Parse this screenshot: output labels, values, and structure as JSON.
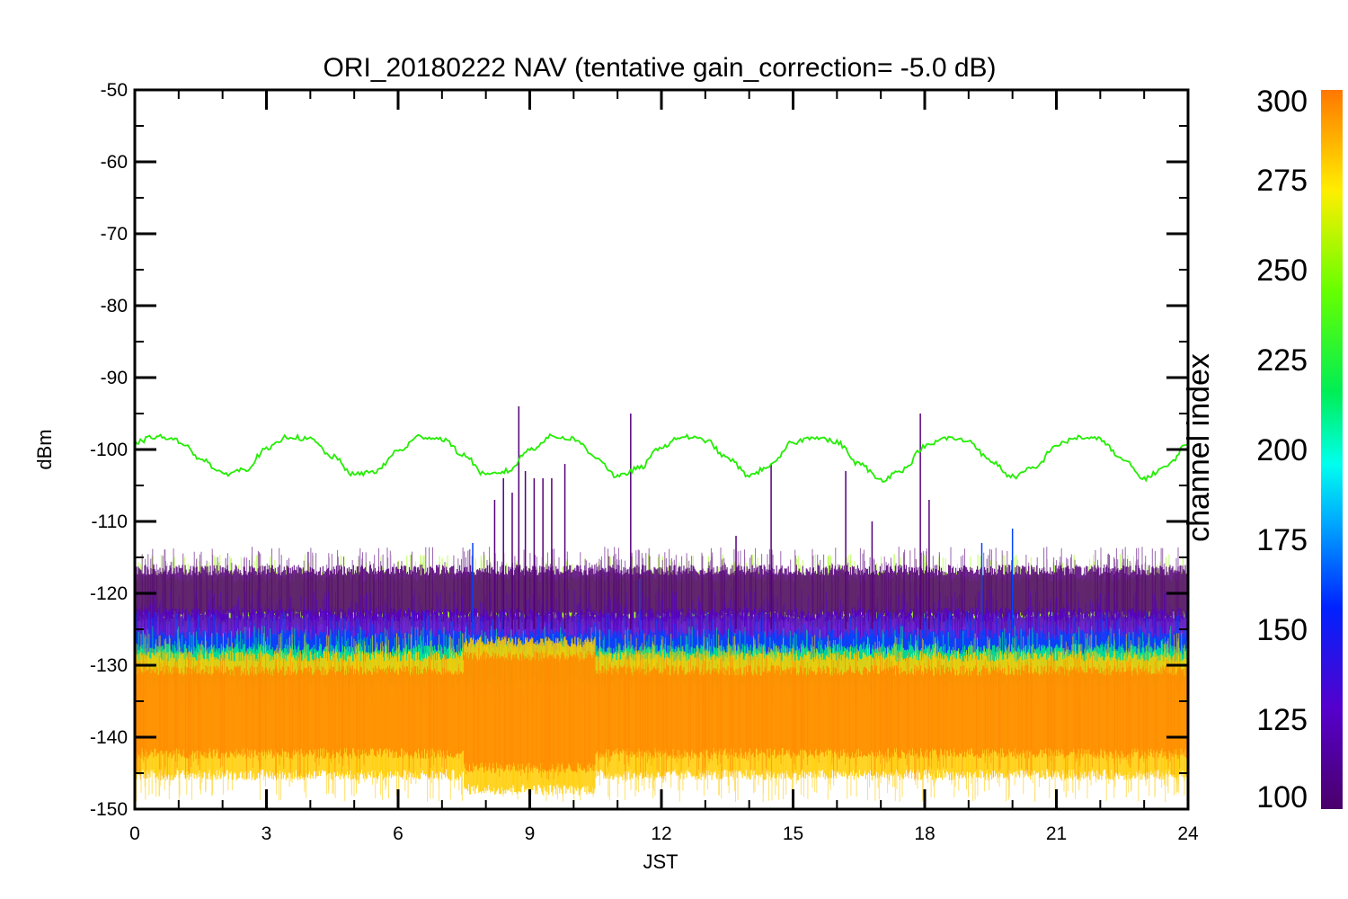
{
  "chart_data": {
    "type": "line",
    "title": "ORI_20180222 NAV (tentative gain_correction= -5.0 dB)",
    "xlabel": "JST",
    "ylabel": "dBm",
    "xlim": [
      0,
      24
    ],
    "ylim": [
      -150,
      -50
    ],
    "xticks": [
      "0",
      "3",
      "6",
      "9",
      "12",
      "15",
      "18",
      "21",
      "24"
    ],
    "yticks": [
      "-50",
      "-60",
      "-70",
      "-80",
      "-90",
      "-100",
      "-110",
      "-120",
      "-130",
      "-140",
      "-150"
    ],
    "grid": false,
    "colorbar": {
      "label": "channel index",
      "range": [
        100,
        300
      ],
      "ticks": [
        "300",
        "275",
        "250",
        "225",
        "200",
        "175",
        "150",
        "125",
        "100"
      ]
    },
    "series": [
      {
        "channel": 240,
        "color": "#22ee00",
        "x": [
          0,
          0.5,
          1,
          1.5,
          2,
          2.5,
          3,
          3.5,
          4,
          4.5,
          5,
          5.5,
          6,
          6.5,
          7,
          7.5,
          8,
          8.5,
          9,
          9.5,
          10,
          10.5,
          11,
          11.5,
          12,
          12.5,
          13,
          13.5,
          14,
          14.5,
          15,
          15.5,
          16,
          16.5,
          17,
          17.5,
          18,
          18.5,
          19,
          19.5,
          20,
          20.5,
          21,
          21.5,
          22,
          22.5,
          23,
          23.5,
          24
        ],
        "y": [
          -99,
          -98.2,
          -98.8,
          -101.2,
          -103.4,
          -102.8,
          -100,
          -98.2,
          -98.6,
          -101,
          -103.5,
          -103,
          -100.2,
          -98.2,
          -98.5,
          -100.8,
          -103.6,
          -103,
          -100,
          -98.2,
          -98.5,
          -101,
          -103.8,
          -102.6,
          -99.6,
          -98.2,
          -98.7,
          -101.2,
          -103.6,
          -102.2,
          -99,
          -98.2,
          -99,
          -102,
          -104.2,
          -102.8,
          -99.6,
          -98.4,
          -98.8,
          -101.6,
          -103.8,
          -102.6,
          -99.4,
          -98.3,
          -98.6,
          -101.4,
          -104,
          -102.4,
          -99.2
        ]
      },
      {
        "channel": 255,
        "color": "#99ff00",
        "band": [
          -125,
          -117
        ]
      },
      {
        "channel": 105,
        "color": "#55007a",
        "band": [
          -124,
          -116
        ]
      },
      {
        "channel": 120,
        "color": "#5500cc",
        "band": [
          -130,
          -122
        ]
      },
      {
        "channel": 150,
        "color": "#0044ff",
        "band": [
          -131,
          -125
        ]
      },
      {
        "channel": 195,
        "color": "#00ee88",
        "band": [
          -133,
          -127
        ]
      },
      {
        "channel": 270,
        "color": "#ffcc00",
        "band": [
          -146,
          -128
        ]
      },
      {
        "channel": 290,
        "color": "#ff8800",
        "band": [
          -143,
          -130
        ]
      }
    ],
    "spikes": [
      {
        "x": 7.7,
        "y": -113,
        "color": "#0044ff"
      },
      {
        "x": 8.2,
        "y": -107,
        "color": "#55007a"
      },
      {
        "x": 8.4,
        "y": -104,
        "color": "#55007a"
      },
      {
        "x": 8.6,
        "y": -106,
        "color": "#55007a"
      },
      {
        "x": 8.75,
        "y": -94,
        "color": "#55007a"
      },
      {
        "x": 8.9,
        "y": -103,
        "color": "#55007a"
      },
      {
        "x": 9.1,
        "y": -104,
        "color": "#55007a"
      },
      {
        "x": 9.3,
        "y": -104,
        "color": "#55007a"
      },
      {
        "x": 9.5,
        "y": -104,
        "color": "#55007a"
      },
      {
        "x": 9.8,
        "y": -102,
        "color": "#55007a"
      },
      {
        "x": 11.3,
        "y": -95,
        "color": "#55007a"
      },
      {
        "x": 11.5,
        "y": -118,
        "color": "#0044ff"
      },
      {
        "x": 13.7,
        "y": -112,
        "color": "#55007a"
      },
      {
        "x": 14.5,
        "y": -102,
        "color": "#55007a"
      },
      {
        "x": 16.2,
        "y": -103,
        "color": "#55007a"
      },
      {
        "x": 16.8,
        "y": -110,
        "color": "#55007a"
      },
      {
        "x": 17.9,
        "y": -95,
        "color": "#55007a"
      },
      {
        "x": 18.1,
        "y": -107,
        "color": "#55007a"
      },
      {
        "x": 19.3,
        "y": -113,
        "color": "#0044ff"
      },
      {
        "x": 20.0,
        "y": -111,
        "color": "#0044ff"
      }
    ]
  }
}
